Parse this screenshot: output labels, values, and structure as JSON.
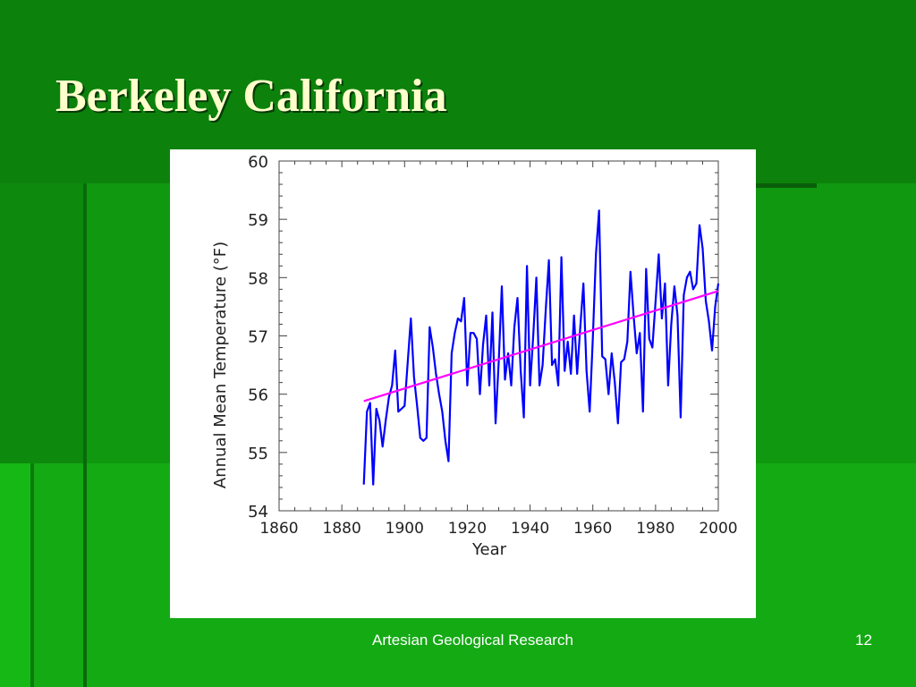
{
  "slide": {
    "title": "Berkeley California",
    "footer": "Artesian Geological Research",
    "page_number": "12"
  },
  "colors": {
    "background": "#0b840b",
    "title": "#ffffcc",
    "data_line": "#0000ff",
    "trend_line": "#ff00ff"
  },
  "chart_data": {
    "type": "line",
    "title": "",
    "xlabel": "Year",
    "ylabel": "Annual Mean Temperature (°F)",
    "xlim": [
      1860,
      2000
    ],
    "ylim": [
      54,
      60
    ],
    "xticks": [
      1860,
      1880,
      1900,
      1920,
      1940,
      1960,
      1980,
      2000
    ],
    "yticks": [
      54,
      55,
      56,
      57,
      58,
      59,
      60
    ],
    "grid": false,
    "series": [
      {
        "x": [
          1887,
          1888,
          1889,
          1890,
          1891,
          1892,
          1893,
          1894,
          1895,
          1896,
          1897,
          1898,
          1899,
          1900,
          1901,
          1902,
          1903,
          1904,
          1905,
          1906,
          1907,
          1908,
          1909,
          1910,
          1911,
          1912,
          1913,
          1914,
          1915,
          1916,
          1917,
          1918,
          1919,
          1920,
          1921,
          1922,
          1923,
          1924,
          1925,
          1926,
          1927,
          1928,
          1929,
          1930,
          1931,
          1932,
          1933,
          1934,
          1935,
          1936,
          1937,
          1938,
          1939,
          1940,
          1941,
          1942,
          1943,
          1944,
          1945,
          1946,
          1947,
          1948,
          1949,
          1950,
          1951,
          1952,
          1953,
          1954,
          1955,
          1956,
          1957,
          1958,
          1959,
          1960,
          1961,
          1962,
          1963,
          1964,
          1965,
          1966,
          1967,
          1968,
          1969,
          1970,
          1971,
          1972,
          1973,
          1974,
          1975,
          1976,
          1977,
          1978,
          1979,
          1980,
          1981,
          1982,
          1983,
          1984,
          1985,
          1986,
          1987,
          1988,
          1989,
          1990,
          1991,
          1992,
          1993,
          1994,
          1995,
          1996,
          1997,
          1998,
          1999,
          2000
        ],
        "y": [
          54.45,
          55.7,
          55.85,
          54.45,
          55.75,
          55.55,
          55.1,
          55.55,
          55.95,
          56.15,
          56.75,
          55.7,
          55.75,
          55.8,
          56.55,
          57.3,
          56.3,
          55.8,
          55.25,
          55.2,
          55.25,
          57.15,
          56.8,
          56.35,
          56.0,
          55.7,
          55.2,
          54.85,
          56.7,
          57.05,
          57.3,
          57.25,
          57.65,
          56.15,
          57.05,
          57.05,
          56.95,
          56.0,
          56.85,
          57.35,
          56.15,
          57.4,
          55.5,
          56.55,
          57.85,
          56.25,
          56.7,
          56.15,
          57.15,
          57.65,
          56.4,
          55.6,
          58.2,
          56.15,
          57.0,
          58.0,
          56.15,
          56.5,
          57.45,
          58.3,
          56.5,
          56.6,
          56.15,
          58.35,
          56.4,
          56.9,
          56.35,
          57.35,
          56.35,
          57.15,
          57.9,
          56.4,
          55.7,
          56.95,
          58.4,
          59.15,
          56.65,
          56.6,
          56.0,
          56.7,
          56.2,
          55.5,
          56.55,
          56.6,
          56.9,
          58.1,
          57.35,
          56.7,
          57.05,
          55.7,
          58.15,
          56.95,
          56.8,
          57.6,
          58.4,
          57.3,
          57.9,
          56.15,
          57.2,
          57.85,
          57.35,
          55.6,
          57.7,
          58.0,
          58.1,
          57.8,
          57.9,
          58.9,
          58.5,
          57.6,
          57.25,
          56.75,
          57.5,
          57.9
        ]
      }
    ],
    "trend": {
      "x": [
        1887,
        2000
      ],
      "y": [
        55.88,
        57.77
      ]
    }
  }
}
